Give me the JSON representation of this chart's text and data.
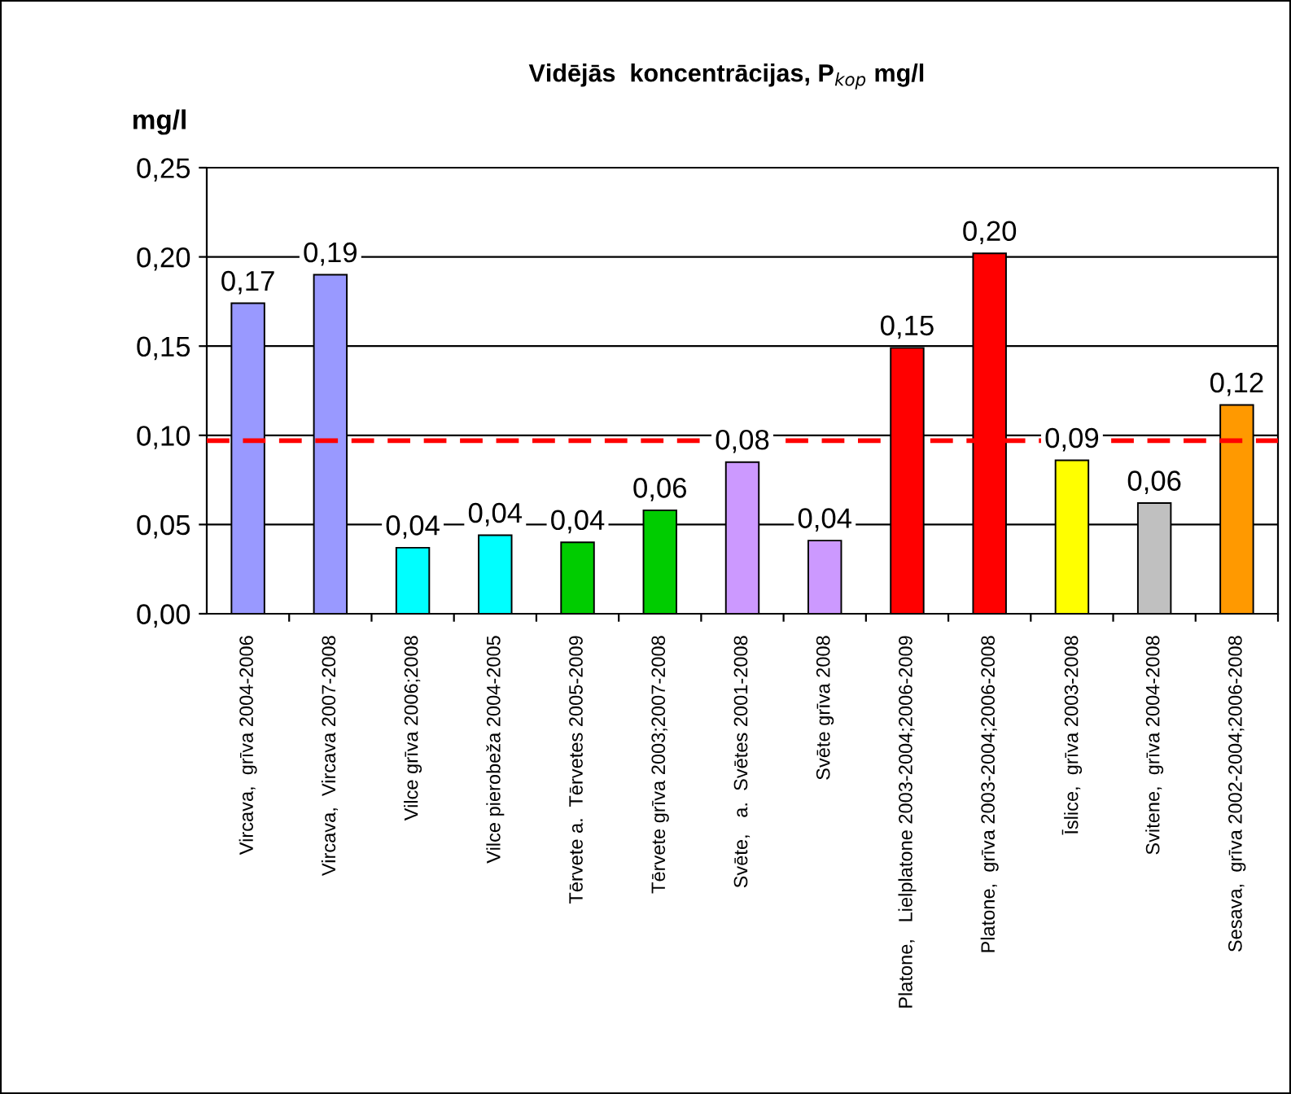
{
  "chart_data": {
    "type": "bar",
    "title": "Vidējās  koncentrācijas, P$_{kop}$ mg/l",
    "ylabel": "mg/l",
    "categories": [
      "Vircava,  grīva 2004-2006",
      "Vircava,  Vircava 2007-2008",
      "Vilce grīva 2006;2008",
      "Vilce pierobeža 2004-2005",
      "Tērvete a.  Tērvetes 2005-2009",
      "Tērvete grīva 2003;2007-2008",
      "Svēte,   a.  Svētes 2001-2008",
      "Svēte grīva 2008",
      "Platone,   Lielplatone 2003-2004;2006-2009",
      "Platone,  grīva 2003-2004;2006-2008",
      "Īslice,  grīva 2003-2008",
      "Svitene,  grīva 2004-2008",
      "Sesava,  grīva 2002-2004;2006-2008"
    ],
    "values": [
      0.174,
      0.19,
      0.037,
      0.044,
      0.04,
      0.058,
      0.085,
      0.041,
      0.149,
      0.202,
      0.086,
      0.062,
      0.117
    ],
    "colors": [
      "#9999ff",
      "#9999ff",
      "#00ffff",
      "#00ffff",
      "#00cc00",
      "#00cc00",
      "#cc99ff",
      "#cc99ff",
      "#ff0000",
      "#ff0000",
      "#ffff00",
      "#c0c0c0",
      "#ff9900"
    ],
    "value_labels": [
      "0,17",
      "0,19",
      "0,04",
      "0,04",
      "0,04",
      "0,06",
      "0,08",
      "0,04",
      "0,15",
      "0,20",
      "0,09",
      "0,06",
      "0,12"
    ],
    "ylim": [
      0,
      0.25
    ],
    "yticks": [
      {
        "value": 0,
        "label": "0,00"
      },
      {
        "value": 0.05,
        "label": "0,05"
      },
      {
        "value": 0.1,
        "label": "0,10"
      },
      {
        "value": 0.15,
        "label": "0,15"
      },
      {
        "value": 0.2,
        "label": "0,20"
      },
      {
        "value": 0.25,
        "label": "0,25"
      }
    ],
    "ref_lines": [
      {
        "axis": "y",
        "value": 0.097,
        "color": "#ff0000",
        "line_style": "dashed"
      }
    ],
    "grid": "y"
  }
}
